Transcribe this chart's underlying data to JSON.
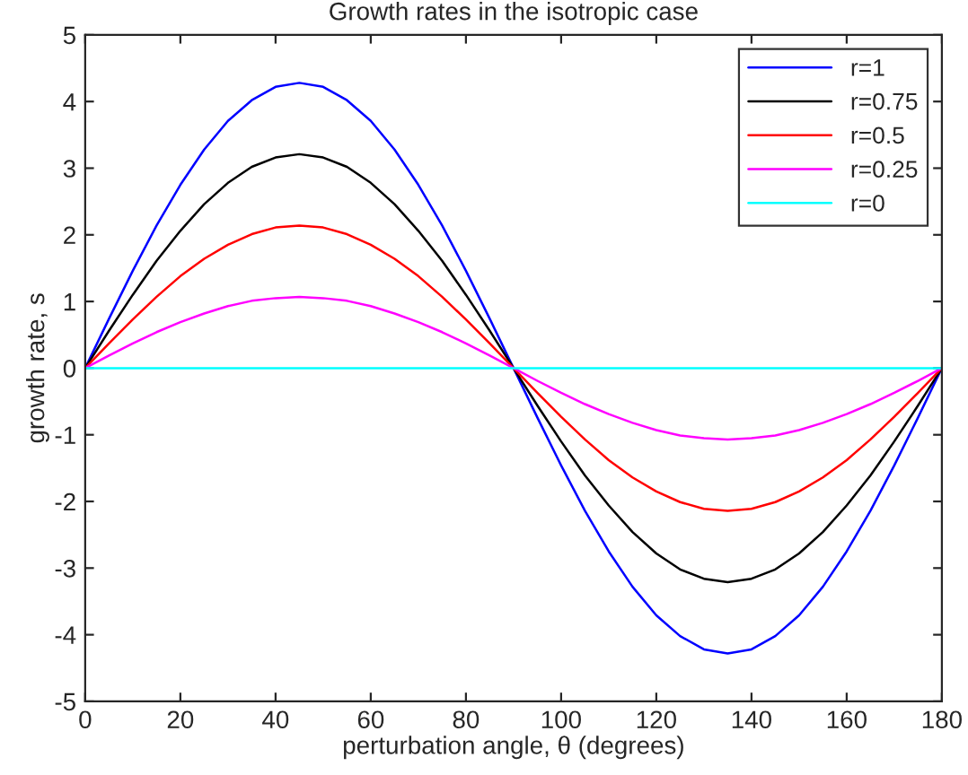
{
  "chart_data": {
    "type": "line",
    "title": "Growth rates in the isotropic case",
    "xlabel": "perturbation angle, θ (degrees)",
    "ylabel": "growth rate, s",
    "x": [
      0,
      5,
      10,
      15,
      20,
      25,
      30,
      35,
      40,
      45,
      50,
      55,
      60,
      65,
      70,
      75,
      80,
      85,
      90,
      95,
      100,
      105,
      110,
      115,
      120,
      125,
      130,
      135,
      140,
      145,
      150,
      155,
      160,
      165,
      170,
      175,
      180
    ],
    "series": [
      {
        "name": "r=1",
        "color": "#0000ff",
        "values": [
          0,
          0.74,
          1.46,
          2.14,
          2.75,
          3.28,
          3.71,
          4.02,
          4.22,
          4.28,
          4.22,
          4.02,
          3.71,
          3.28,
          2.75,
          2.14,
          1.46,
          0.74,
          0,
          -0.74,
          -1.46,
          -2.14,
          -2.75,
          -3.28,
          -3.71,
          -4.02,
          -4.22,
          -4.28,
          -4.22,
          -4.02,
          -3.71,
          -3.28,
          -2.75,
          -2.14,
          -1.46,
          -0.74,
          0
        ]
      },
      {
        "name": "r=0.75",
        "color": "#000000",
        "values": [
          0,
          0.56,
          1.1,
          1.61,
          2.06,
          2.46,
          2.78,
          3.02,
          3.16,
          3.21,
          3.16,
          3.02,
          2.78,
          2.46,
          2.06,
          1.61,
          1.1,
          0.56,
          0,
          -0.56,
          -1.1,
          -1.61,
          -2.06,
          -2.46,
          -2.78,
          -3.02,
          -3.16,
          -3.21,
          -3.16,
          -3.02,
          -2.78,
          -2.46,
          -2.06,
          -1.61,
          -1.1,
          -0.56,
          0
        ]
      },
      {
        "name": "r=0.5",
        "color": "#ff0000",
        "values": [
          0,
          0.37,
          0.73,
          1.07,
          1.38,
          1.64,
          1.85,
          2.01,
          2.11,
          2.14,
          2.11,
          2.01,
          1.85,
          1.64,
          1.38,
          1.07,
          0.73,
          0.37,
          0,
          -0.37,
          -0.73,
          -1.07,
          -1.38,
          -1.64,
          -1.85,
          -2.01,
          -2.11,
          -2.14,
          -2.11,
          -2.01,
          -1.85,
          -1.64,
          -1.38,
          -1.07,
          -0.73,
          -0.37,
          0
        ]
      },
      {
        "name": "r=0.25",
        "color": "#ff00ff",
        "values": [
          0,
          0.19,
          0.37,
          0.54,
          0.69,
          0.82,
          0.93,
          1.01,
          1.05,
          1.07,
          1.05,
          1.01,
          0.93,
          0.82,
          0.69,
          0.54,
          0.37,
          0.19,
          0,
          -0.19,
          -0.37,
          -0.54,
          -0.69,
          -0.82,
          -0.93,
          -1.01,
          -1.05,
          -1.07,
          -1.05,
          -1.01,
          -0.93,
          -0.82,
          -0.69,
          -0.54,
          -0.37,
          -0.19,
          0
        ]
      },
      {
        "name": "r=0",
        "color": "#00ffff",
        "values": [
          0,
          0,
          0,
          0,
          0,
          0,
          0,
          0,
          0,
          0,
          0,
          0,
          0,
          0,
          0,
          0,
          0,
          0,
          0,
          0,
          0,
          0,
          0,
          0,
          0,
          0,
          0,
          0,
          0,
          0,
          0,
          0,
          0,
          0,
          0,
          0,
          0
        ]
      }
    ],
    "xlim": [
      0,
      180
    ],
    "xticks": [
      0,
      20,
      40,
      60,
      80,
      100,
      120,
      140,
      160,
      180
    ],
    "ylim": [
      -5,
      5
    ],
    "yticks": [
      -5,
      -4,
      -3,
      -2,
      -1,
      0,
      1,
      2,
      3,
      4,
      5
    ],
    "grid": false,
    "legend": "top right",
    "marker": "none",
    "line_style": "solid"
  }
}
